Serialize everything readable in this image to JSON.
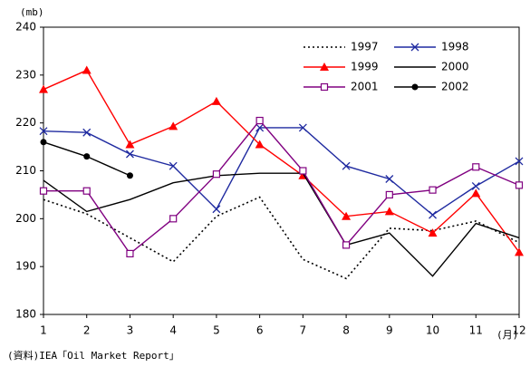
{
  "chart_data": {
    "type": "line",
    "unit_label": "(mb)",
    "x_unit_label": "(月)",
    "source": "(資料)IEA「Oil Market Report」",
    "categories": [
      "1",
      "2",
      "3",
      "4",
      "5",
      "6",
      "7",
      "8",
      "9",
      "10",
      "11",
      "12"
    ],
    "ylim": [
      180,
      240
    ],
    "yticks": [
      180,
      190,
      200,
      210,
      220,
      230,
      240
    ],
    "grid": false,
    "legend_position": "upper-right",
    "series": [
      {
        "name": "1997",
        "color": "#000000",
        "dash": "dotted",
        "marker": "none",
        "values": [
          204,
          201,
          196,
          191,
          200.5,
          204.5,
          191.5,
          187.5,
          198,
          197.5,
          199.5,
          195
        ]
      },
      {
        "name": "1998",
        "color": "#1f2aa0",
        "dash": "solid",
        "marker": "x",
        "values": [
          218.3,
          218,
          213.5,
          211,
          202,
          219,
          219,
          211,
          208.3,
          200.8,
          206.8,
          212
        ]
      },
      {
        "name": "1999",
        "color": "#ff0000",
        "dash": "solid",
        "marker": "triangle",
        "values": [
          227,
          231,
          215.5,
          219.3,
          224.5,
          215.5,
          209,
          200.5,
          201.5,
          197,
          205.3,
          193
        ]
      },
      {
        "name": "2000",
        "color": "#000000",
        "dash": "solid",
        "marker": "none",
        "values": [
          208,
          201.5,
          204,
          207.5,
          209,
          209.5,
          209.5,
          194.5,
          197,
          188,
          199,
          196
        ]
      },
      {
        "name": "2001",
        "color": "#800080",
        "dash": "solid",
        "marker": "square",
        "values": [
          205.8,
          205.8,
          192.7,
          200,
          209.3,
          220.5,
          210,
          194.5,
          205,
          206,
          210.8,
          207
        ]
      },
      {
        "name": "2002",
        "color": "#000000",
        "dash": "solid",
        "marker": "circle",
        "values": [
          216,
          213,
          209,
          null,
          null,
          null,
          null,
          null,
          null,
          null,
          null,
          null
        ]
      }
    ]
  }
}
